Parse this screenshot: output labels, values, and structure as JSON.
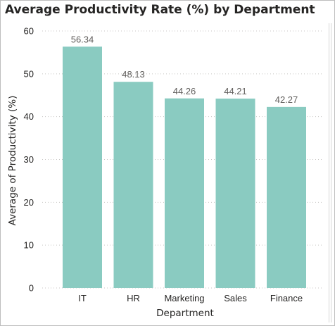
{
  "chart_data": {
    "type": "bar",
    "title": "Average Productivity Rate (%) by Department",
    "xlabel": "Department",
    "ylabel": "Average of Productivity (%)",
    "categories": [
      "IT",
      "HR",
      "Marketing",
      "Sales",
      "Finance"
    ],
    "values": [
      56.34,
      48.13,
      44.26,
      44.21,
      42.27
    ],
    "value_labels": [
      "56.34",
      "48.13",
      "44.26",
      "44.21",
      "42.27"
    ],
    "ylim": [
      0,
      60
    ],
    "yticks": [
      "0",
      "10",
      "20",
      "30",
      "40",
      "50",
      "60"
    ],
    "grid": true,
    "legend": "none",
    "bar_color": "#8ACBC1"
  }
}
